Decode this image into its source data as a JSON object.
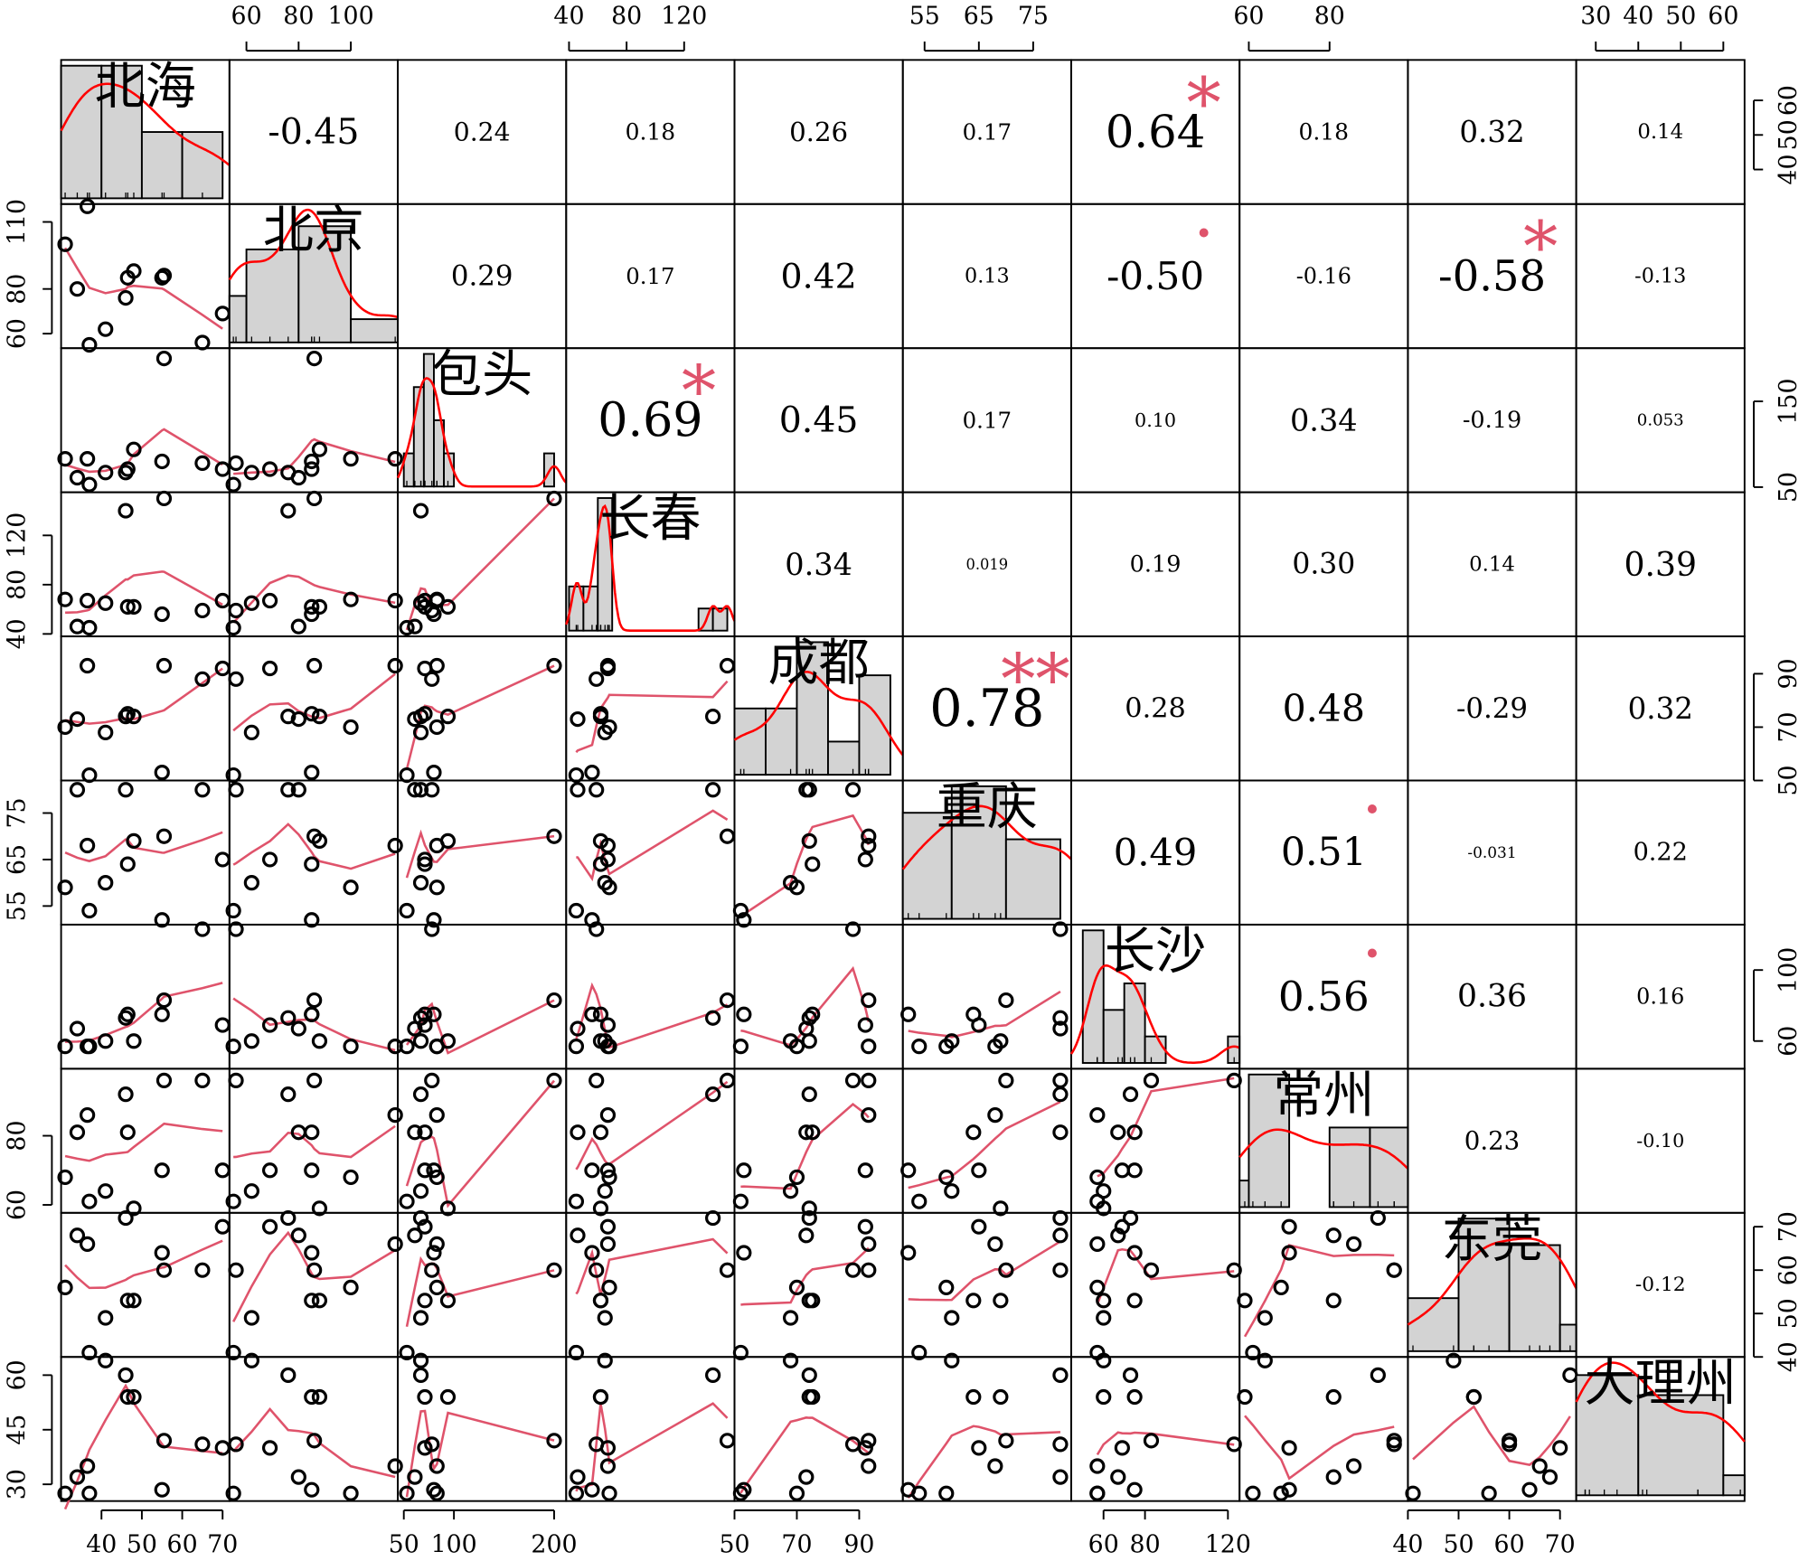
{
  "chart_data": {
    "type": "scatter-matrix",
    "variables": [
      {
        "name": "北海",
        "values": [
          31,
          34,
          36.5,
          37,
          41,
          46,
          46.5,
          48,
          55,
          55.5,
          65,
          70
        ],
        "lim": [
          30,
          71.7
        ],
        "xticks": [
          40,
          50,
          60,
          70
        ],
        "yticks": [
          40,
          50,
          60
        ]
      },
      {
        "name": "北京",
        "values": [
          100,
          80,
          117,
          55,
          62,
          76,
          85,
          88,
          85,
          86,
          56,
          69
        ],
        "lim": [
          53.5,
          118
        ],
        "xticks": [
          60,
          80,
          100
        ],
        "yticks": [
          60,
          80,
          110
        ]
      },
      {
        "name": "包头",
        "values": [
          83,
          61,
          83,
          53,
          67,
          67,
          71,
          94,
          80,
          200,
          78,
          71
        ],
        "lim": [
          44,
          212
        ],
        "xticks": [
          50,
          100,
          200
        ],
        "yticks": [
          50,
          150
        ]
      },
      {
        "name": "长春",
        "values": [
          68,
          46,
          67,
          45,
          65,
          140,
          62,
          62,
          56,
          150,
          59,
          67
        ],
        "lim": [
          38,
          155
        ],
        "xticks": [
          40,
          80,
          120
        ],
        "yticks": [
          40,
          80,
          120
        ]
      },
      {
        "name": "成都",
        "values": [
          70,
          73,
          93,
          52,
          68,
          74,
          75,
          74,
          53,
          93,
          88,
          92
        ],
        "lim": [
          50,
          104
        ],
        "xticks": [
          50,
          70,
          90
        ],
        "yticks": [
          50,
          70,
          90
        ]
      },
      {
        "name": "重庆",
        "values": [
          59,
          80,
          68,
          54,
          60,
          80,
          64,
          69,
          52,
          70,
          80,
          65
        ],
        "lim": [
          51,
          82
        ],
        "xticks": [
          55,
          65,
          75
        ],
        "yticks": [
          55,
          65,
          75
        ]
      },
      {
        "name": "长沙",
        "values": [
          57,
          67,
          57,
          57,
          60,
          73,
          75,
          60,
          75,
          83,
          123,
          69
        ],
        "lim": [
          44.4,
          125.6
        ],
        "xticks": [
          60,
          80,
          120
        ],
        "yticks": [
          60,
          100
        ]
      },
      {
        "name": "常州",
        "values": [
          68,
          81,
          86,
          61,
          64,
          92,
          81,
          59,
          70,
          96,
          96,
          70
        ],
        "lim": [
          57.7,
          99.4
        ],
        "xticks": [
          60,
          80
        ],
        "yticks": [
          60,
          80
        ]
      },
      {
        "name": "东莞",
        "values": [
          56,
          68,
          66,
          41,
          49,
          72,
          53,
          53,
          64,
          60,
          60,
          70
        ],
        "lim": [
          40,
          73.2
        ],
        "xticks": [
          40,
          50,
          60,
          70
        ],
        "yticks": [
          40,
          50,
          60,
          70
        ]
      },
      {
        "name": "大理州",
        "values": [
          27.5,
          32,
          35,
          27.5,
          64,
          60,
          54,
          54,
          28.5,
          42,
          41,
          40
        ],
        "lim": [
          25.4,
          65
        ],
        "xticks": [
          30,
          40,
          50,
          60
        ],
        "yticks": [
          30,
          45,
          60
        ]
      }
    ],
    "correlations": [
      [
        -0.45,
        0.24,
        0.18,
        0.26,
        0.17,
        0.64,
        0.18,
        0.32,
        0.14
      ],
      [
        0.29,
        0.17,
        0.42,
        0.13,
        {
          "value": -0.5,
          "label": "-0.50"
        },
        -0.16,
        -0.58,
        -0.13
      ],
      [
        0.69,
        0.45,
        0.17,
        {
          "value": 0.1,
          "label": "0.10"
        },
        0.34,
        -0.19,
        0.053
      ],
      [
        0.34,
        0.019,
        0.19,
        {
          "value": 0.3,
          "label": "0.30"
        },
        0.14,
        0.39
      ],
      [
        0.78,
        0.28,
        0.48,
        -0.29,
        0.32
      ],
      [
        0.49,
        0.51,
        -0.031,
        0.22
      ],
      [
        0.56,
        0.36,
        0.16
      ],
      [
        0.23,
        {
          "value": -0.1,
          "label": "-0.10"
        }
      ],
      [
        -0.12
      ]
    ],
    "stars": [
      [
        null,
        null,
        null,
        null,
        null,
        "*",
        null,
        null,
        null
      ],
      [
        null,
        null,
        null,
        null,
        ".",
        null,
        "*",
        null
      ],
      [
        "*",
        null,
        null,
        null,
        null,
        null,
        null
      ],
      [
        null,
        null,
        null,
        null,
        null,
        null
      ],
      [
        "**",
        null,
        null,
        null,
        null
      ],
      [
        null,
        ".",
        null,
        null
      ],
      [
        ".",
        null,
        null
      ],
      [
        null,
        null
      ],
      [
        null
      ]
    ],
    "point_color": "#000000",
    "smooth_color": "#df536b",
    "density_color": "#ff0000",
    "hist_color": "#d3d3d3",
    "star_color": "#df536b"
  }
}
